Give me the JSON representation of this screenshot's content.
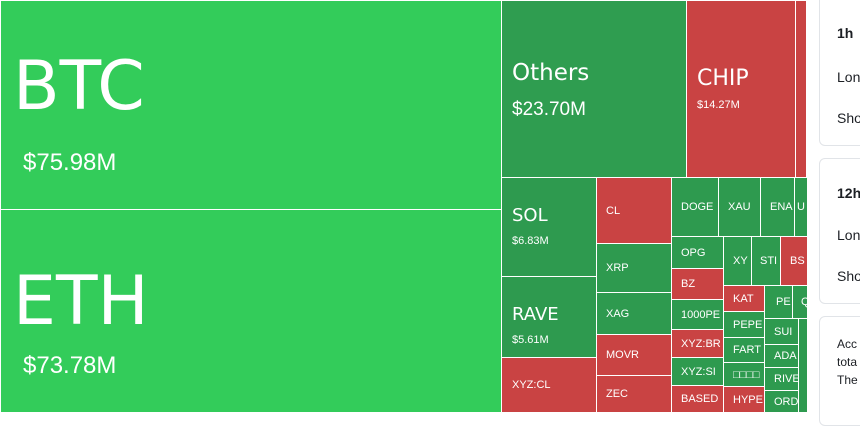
{
  "treemap": {
    "tiles": [
      {
        "symbol": "BTC",
        "value": "$75.98M",
        "color": "#33cc5a"
      },
      {
        "symbol": "ETH",
        "value": "$73.78M",
        "color": "#33cc5a"
      },
      {
        "symbol": "Others",
        "value": "$23.70M",
        "color": "#2f9d50"
      },
      {
        "symbol": "CHIP",
        "value": "$14.27M",
        "color": "#c94343"
      },
      {
        "symbol": "SOL",
        "value": "$6.83M",
        "color": "#2e9a4f"
      },
      {
        "symbol": "RAVE",
        "value": "$5.61M",
        "color": "#2e9a4f"
      },
      {
        "symbol": "XYZ:CL",
        "color": "#c94343"
      },
      {
        "symbol": "CL",
        "color": "#c94343"
      },
      {
        "symbol": "XRP",
        "color": "#2e9a4f"
      },
      {
        "symbol": "XAG",
        "color": "#2e9a4f"
      },
      {
        "symbol": "MOVR",
        "color": "#c94343"
      },
      {
        "symbol": "ZEC",
        "color": "#c94343"
      },
      {
        "symbol": "DOGE",
        "color": "#2e9a4f"
      },
      {
        "symbol": "XAU",
        "color": "#2e9a4f"
      },
      {
        "symbol": "ENA",
        "color": "#2e9a4f"
      },
      {
        "symbol": "U",
        "color": "#2e9a4f"
      },
      {
        "symbol": "OPG",
        "color": "#2e9a4f"
      },
      {
        "symbol": "BZ",
        "color": "#c94343"
      },
      {
        "symbol": "1000PE",
        "color": "#2e9a4f"
      },
      {
        "symbol": "XYZ:BR",
        "color": "#c94343"
      },
      {
        "symbol": "XYZ:SI",
        "color": "#2e9a4f"
      },
      {
        "symbol": "BASED",
        "color": "#c94343"
      },
      {
        "symbol": "XY",
        "color": "#2e9a4f"
      },
      {
        "symbol": "STI",
        "color": "#2e9a4f"
      },
      {
        "symbol": "BS",
        "color": "#c94343"
      },
      {
        "symbol": "KAT",
        "color": "#c94343"
      },
      {
        "symbol": "PEPE",
        "color": "#2e9a4f"
      },
      {
        "symbol": "FART",
        "color": "#2e9a4f"
      },
      {
        "symbol": "□□□□",
        "color": "#2e9a4f"
      },
      {
        "symbol": "HYPE",
        "color": "#c94343"
      },
      {
        "symbol": "PE",
        "color": "#2e9a4f"
      },
      {
        "symbol": "Q",
        "color": "#2e9a4f"
      },
      {
        "symbol": "SUI",
        "color": "#2e9a4f"
      },
      {
        "symbol": "ADA",
        "color": "#2e9a4f"
      },
      {
        "symbol": "RIVE",
        "color": "#2e9a4f"
      },
      {
        "symbol": "ORD",
        "color": "#2e9a4f"
      }
    ]
  },
  "cards": [
    {
      "title": "1h",
      "rows": [
        "Lon",
        "Sho"
      ]
    },
    {
      "title": "12h",
      "rows": [
        "Lon",
        "Sho"
      ]
    }
  ],
  "info": {
    "lines": [
      "Acc",
      "tota",
      "The"
    ]
  }
}
